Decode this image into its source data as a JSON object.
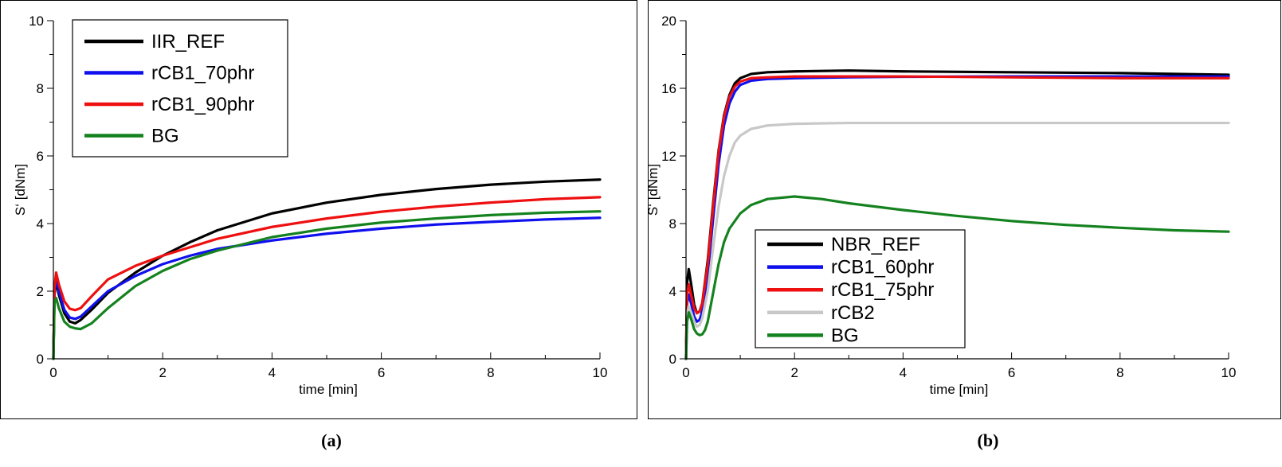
{
  "chart_data": [
    {
      "type": "line",
      "panel_label": "(a)",
      "xlabel": "time [min]",
      "ylabel": "S‘ [dNm]",
      "xlim": [
        0,
        10
      ],
      "ylim": [
        0,
        10
      ],
      "x_ticks": [
        0,
        2,
        4,
        6,
        8,
        10
      ],
      "y_ticks": [
        0,
        2,
        4,
        6,
        8,
        10
      ],
      "legend_position": "top-left",
      "series": [
        {
          "name": "IIR_REF",
          "color": "#000000",
          "x": [
            0,
            0.02,
            0.05,
            0.1,
            0.2,
            0.3,
            0.4,
            0.5,
            0.7,
            1.0,
            1.5,
            2.0,
            2.5,
            3.0,
            4.0,
            5.0,
            6.0,
            7.0,
            8.0,
            9.0,
            10.0
          ],
          "y": [
            0,
            1.9,
            2.3,
            1.9,
            1.35,
            1.1,
            1.05,
            1.15,
            1.45,
            1.95,
            2.55,
            3.05,
            3.45,
            3.8,
            4.3,
            4.62,
            4.85,
            5.02,
            5.15,
            5.24,
            5.3
          ]
        },
        {
          "name": "rCB1_70phr",
          "color": "#1010ee",
          "x": [
            0,
            0.02,
            0.05,
            0.1,
            0.2,
            0.3,
            0.4,
            0.5,
            0.7,
            1.0,
            1.5,
            2.0,
            2.5,
            3.0,
            4.0,
            5.0,
            6.0,
            7.0,
            8.0,
            9.0,
            10.0
          ],
          "y": [
            0,
            2.0,
            2.4,
            2.0,
            1.45,
            1.22,
            1.18,
            1.25,
            1.55,
            2.0,
            2.45,
            2.8,
            3.05,
            3.25,
            3.5,
            3.7,
            3.85,
            3.97,
            4.05,
            4.12,
            4.17
          ]
        },
        {
          "name": "rCB1_90phr",
          "color": "#ee1010",
          "x": [
            0,
            0.02,
            0.05,
            0.1,
            0.2,
            0.3,
            0.4,
            0.5,
            0.7,
            1.0,
            1.5,
            2.0,
            2.5,
            3.0,
            4.0,
            5.0,
            6.0,
            7.0,
            8.0,
            9.0,
            10.0
          ],
          "y": [
            0,
            2.1,
            2.55,
            2.2,
            1.7,
            1.48,
            1.44,
            1.5,
            1.85,
            2.35,
            2.75,
            3.05,
            3.3,
            3.55,
            3.9,
            4.15,
            4.35,
            4.5,
            4.62,
            4.72,
            4.78
          ]
        },
        {
          "name": "BG",
          "color": "#14821e",
          "x": [
            0,
            0.02,
            0.05,
            0.1,
            0.2,
            0.3,
            0.4,
            0.5,
            0.7,
            1.0,
            1.5,
            2.0,
            2.5,
            3.0,
            4.0,
            5.0,
            6.0,
            7.0,
            8.0,
            9.0,
            10.0
          ],
          "y": [
            0,
            1.65,
            1.8,
            1.5,
            1.1,
            0.95,
            0.9,
            0.88,
            1.05,
            1.5,
            2.15,
            2.6,
            2.95,
            3.2,
            3.6,
            3.85,
            4.03,
            4.15,
            4.25,
            4.32,
            4.36
          ]
        }
      ]
    },
    {
      "type": "line",
      "panel_label": "(b)",
      "xlabel": "time [min]",
      "ylabel": "S‘ [dNm]",
      "xlim": [
        0,
        10
      ],
      "ylim": [
        0,
        20
      ],
      "x_ticks": [
        0,
        2,
        4,
        6,
        8,
        10
      ],
      "y_ticks": [
        0,
        4,
        8,
        12,
        16,
        20
      ],
      "legend_position": "bottom-center",
      "series": [
        {
          "name": "NBR_REF",
          "color": "#000000",
          "x": [
            0,
            0.02,
            0.05,
            0.1,
            0.15,
            0.2,
            0.25,
            0.3,
            0.4,
            0.5,
            0.6,
            0.7,
            0.8,
            0.9,
            1.0,
            1.2,
            1.5,
            2.0,
            3.0,
            4.0,
            6.0,
            8.0,
            10.0
          ],
          "y": [
            0,
            4.5,
            5.3,
            4.3,
            3.2,
            2.7,
            2.8,
            3.3,
            5.8,
            9.2,
            12.3,
            14.4,
            15.6,
            16.3,
            16.6,
            16.85,
            16.95,
            17.0,
            17.05,
            17.0,
            16.95,
            16.9,
            16.8
          ]
        },
        {
          "name": "rCB1_60phr",
          "color": "#1010ee",
          "x": [
            0,
            0.02,
            0.05,
            0.1,
            0.15,
            0.2,
            0.25,
            0.3,
            0.4,
            0.5,
            0.6,
            0.7,
            0.8,
            0.9,
            1.0,
            1.2,
            1.5,
            2.0,
            3.0,
            4.0,
            6.0,
            8.0,
            10.0
          ],
          "y": [
            0,
            3.3,
            3.8,
            3.2,
            2.5,
            2.2,
            2.3,
            2.8,
            5.0,
            8.3,
            11.5,
            13.8,
            15.1,
            15.8,
            16.2,
            16.45,
            16.55,
            16.6,
            16.65,
            16.68,
            16.7,
            16.7,
            16.7
          ]
        },
        {
          "name": "rCB1_75phr",
          "color": "#ee1010",
          "x": [
            0,
            0.02,
            0.05,
            0.1,
            0.15,
            0.2,
            0.25,
            0.3,
            0.4,
            0.5,
            0.6,
            0.7,
            0.8,
            0.9,
            1.0,
            1.2,
            1.5,
            2.0,
            3.0,
            4.0,
            6.0,
            8.0,
            10.0
          ],
          "y": [
            0,
            3.8,
            4.4,
            3.7,
            3.0,
            2.7,
            2.8,
            3.3,
            5.6,
            9.0,
            12.2,
            14.3,
            15.5,
            16.1,
            16.4,
            16.6,
            16.65,
            16.7,
            16.7,
            16.7,
            16.65,
            16.6,
            16.6
          ]
        },
        {
          "name": "rCB2",
          "color": "#c8c8c8",
          "x": [
            0,
            0.02,
            0.05,
            0.1,
            0.15,
            0.2,
            0.25,
            0.3,
            0.4,
            0.5,
            0.6,
            0.7,
            0.8,
            0.9,
            1.0,
            1.2,
            1.5,
            2.0,
            3.0,
            4.0,
            6.0,
            8.0,
            10.0
          ],
          "y": [
            0,
            2.6,
            3.1,
            2.7,
            2.2,
            1.9,
            2.0,
            2.4,
            4.0,
            6.6,
            9.0,
            10.8,
            12.0,
            12.8,
            13.2,
            13.6,
            13.8,
            13.9,
            13.95,
            13.95,
            13.95,
            13.95,
            13.95
          ]
        },
        {
          "name": "BG",
          "color": "#14821e",
          "x": [
            0,
            0.02,
            0.05,
            0.1,
            0.15,
            0.2,
            0.25,
            0.3,
            0.35,
            0.4,
            0.5,
            0.6,
            0.7,
            0.8,
            1.0,
            1.2,
            1.5,
            2.0,
            2.5,
            3.0,
            4.0,
            5.0,
            6.0,
            7.0,
            8.0,
            9.0,
            10.0
          ],
          "y": [
            0,
            2.2,
            2.75,
            2.3,
            1.75,
            1.5,
            1.4,
            1.45,
            1.7,
            2.2,
            3.9,
            5.6,
            6.9,
            7.7,
            8.6,
            9.1,
            9.45,
            9.6,
            9.45,
            9.2,
            8.8,
            8.45,
            8.15,
            7.92,
            7.75,
            7.6,
            7.52
          ]
        }
      ]
    }
  ]
}
